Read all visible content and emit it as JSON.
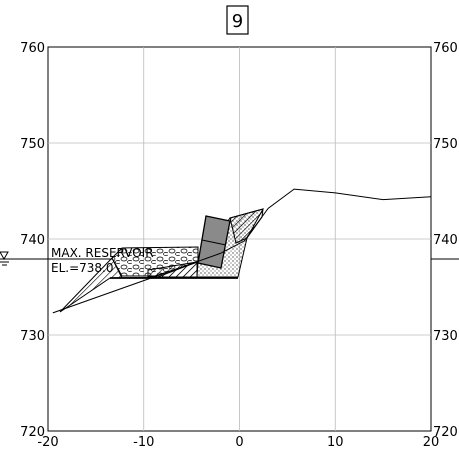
{
  "section_number": "9",
  "annotation": {
    "line1": "MAX. RESERVOIR",
    "line2": "EL.=738.0"
  },
  "chart_data": {
    "type": "diagram",
    "xlim": [
      -20,
      20
    ],
    "ylim": [
      720,
      760
    ],
    "y_ticks": [
      720,
      730,
      740,
      750,
      760
    ],
    "x_ticks": [
      -20,
      -10,
      0,
      10,
      20
    ],
    "x_tick_labels": [
      "-20",
      "-10",
      "0",
      "10",
      "20"
    ],
    "grid": true,
    "reservoir_elevation": 738.0,
    "ground_profile": [
      [
        -19.5,
        732.3
      ],
      [
        -14.5,
        737.9
      ],
      [
        -11.5,
        736.3
      ],
      [
        -5,
        737.2
      ],
      [
        -4,
        737.5
      ],
      [
        -2,
        738.5
      ],
      [
        0.5,
        739.8
      ],
      [
        3,
        743.2
      ],
      [
        5.7,
        745.2
      ],
      [
        10,
        744.8
      ],
      [
        15,
        744.1
      ],
      [
        20,
        744.4
      ]
    ],
    "cross_section_line": [
      [
        -19.5,
        732.3
      ],
      [
        -2,
        738.5
      ]
    ]
  }
}
